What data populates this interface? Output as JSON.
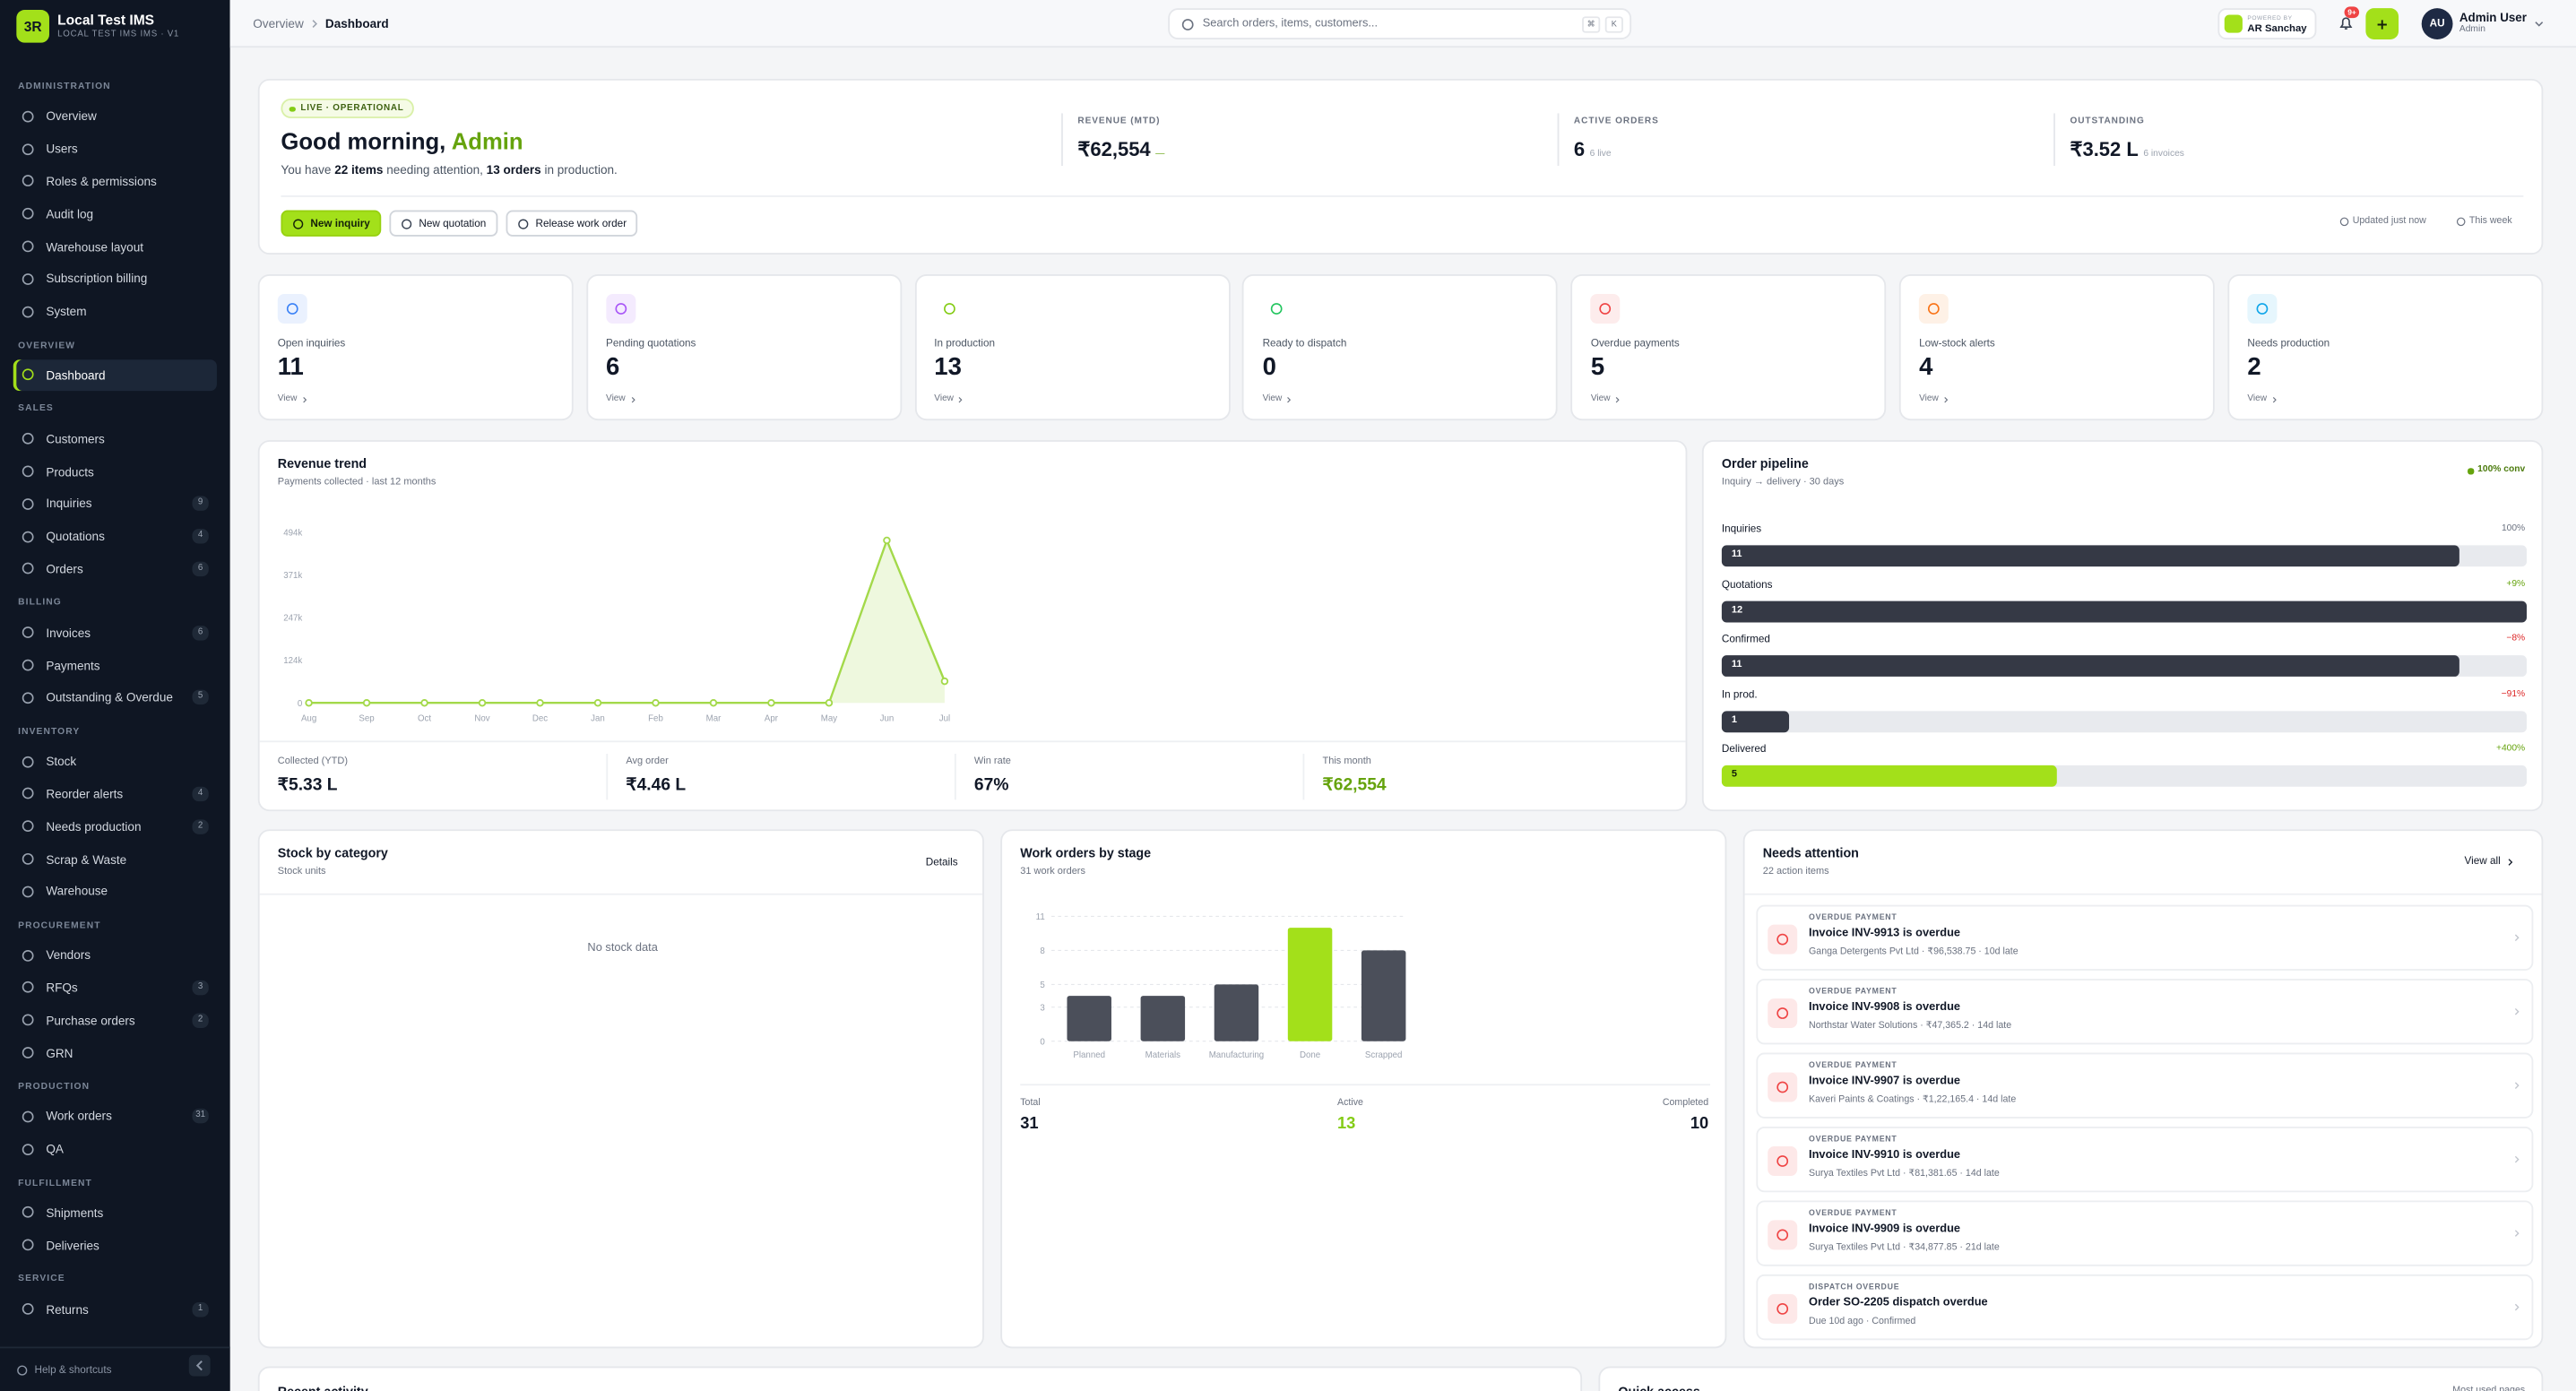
{
  "sidebar": {
    "logo_text": "3R",
    "brand": "Local Test IMS",
    "subtitle": "LOCAL TEST IMS IMS · V1",
    "sections": [
      {
        "title": "ADMINISTRATION",
        "items": [
          {
            "label": "Overview"
          },
          {
            "label": "Users"
          },
          {
            "label": "Roles & permissions"
          },
          {
            "label": "Audit log"
          },
          {
            "label": "Warehouse layout"
          },
          {
            "label": "Subscription billing"
          },
          {
            "label": "System"
          }
        ]
      },
      {
        "title": "OVERVIEW",
        "items": [
          {
            "label": "Dashboard",
            "active": true
          }
        ]
      },
      {
        "title": "SALES",
        "items": [
          {
            "label": "Customers"
          },
          {
            "label": "Products"
          },
          {
            "label": "Inquiries",
            "badge": 9
          },
          {
            "label": "Quotations",
            "badge": 4
          },
          {
            "label": "Orders",
            "badge": 6
          }
        ]
      },
      {
        "title": "BILLING",
        "items": [
          {
            "label": "Invoices",
            "badge": 6
          },
          {
            "label": "Payments"
          },
          {
            "label": "Outstanding & Overdue",
            "badge": 5
          }
        ]
      },
      {
        "title": "INVENTORY",
        "items": [
          {
            "label": "Stock"
          },
          {
            "label": "Reorder alerts",
            "badge": 4
          },
          {
            "label": "Needs production",
            "badge": 2
          },
          {
            "label": "Scrap & Waste"
          },
          {
            "label": "Warehouse"
          }
        ]
      },
      {
        "title": "PROCUREMENT",
        "items": [
          {
            "label": "Vendors"
          },
          {
            "label": "RFQs",
            "badge": 3
          },
          {
            "label": "Purchase orders",
            "badge": 2
          },
          {
            "label": "GRN"
          }
        ]
      },
      {
        "title": "PRODUCTION",
        "items": [
          {
            "label": "Work orders",
            "badge": 31
          },
          {
            "label": "QA"
          }
        ]
      },
      {
        "title": "FULFILLMENT",
        "items": [
          {
            "label": "Shipments"
          },
          {
            "label": "Deliveries"
          }
        ]
      },
      {
        "title": "SERVICE",
        "items": [
          {
            "label": "Returns",
            "badge": 1
          }
        ]
      }
    ],
    "help": "Help & shortcuts"
  },
  "topbar": {
    "breadcrumb": [
      "Overview",
      "Dashboard"
    ],
    "search_placeholder": "Search orders, items, customers...",
    "shortcut": [
      "⌘",
      "K"
    ],
    "powered_label": "POWERED BY",
    "powered_name": "AR Sanchay",
    "notifications": "9+",
    "user": {
      "initials": "AU",
      "name": "Admin User",
      "role": "Admin"
    }
  },
  "hero": {
    "status": "LIVE · OPERATIONAL",
    "greeting": "Good morning,",
    "name": "Admin",
    "summary": [
      "You have ",
      "22 items",
      " needing attention, ",
      "13 orders",
      " in production."
    ],
    "kpis": [
      {
        "label": "REVENUE (MTD)",
        "value": "₹62,554",
        "note": "—",
        "note_color": "#65a30d"
      },
      {
        "label": "ACTIVE ORDERS",
        "value": "6",
        "note": "6 live",
        "note_color": "#9ca3af"
      },
      {
        "label": "OUTSTANDING",
        "value": "₹3.52 L",
        "note": "6 invoices",
        "note_color": "#9ca3af"
      }
    ],
    "actions": [
      "New inquiry",
      "New quotation",
      "Release work order"
    ],
    "updated": "Updated just now",
    "period": "This week"
  },
  "stat_cards": [
    {
      "label": "Open inquiries",
      "value": 11,
      "link": "View",
      "color": "#3b82f6",
      "bg": "#eaf1fe"
    },
    {
      "label": "Pending quotations",
      "value": 6,
      "link": "View",
      "color": "#a855f7",
      "bg": "#f4ebfe"
    },
    {
      "label": "In production",
      "value": 13,
      "link": "View",
      "color": "#84cc16",
      "bg": "#ffffff"
    },
    {
      "label": "Ready to dispatch",
      "value": 0,
      "link": "View",
      "color": "#22c55e",
      "bg": "#ffffff"
    },
    {
      "label": "Overdue payments",
      "value": 5,
      "link": "View",
      "color": "#ef4444",
      "bg": "#fdecec"
    },
    {
      "label": "Low-stock alerts",
      "value": 4,
      "link": "View",
      "color": "#f97316",
      "bg": "#fef1e6"
    },
    {
      "label": "Needs production",
      "value": 2,
      "link": "View",
      "color": "#0ea5e9",
      "bg": "#e6f6fd"
    }
  ],
  "revenue_trend": {
    "type": "line",
    "title": "Revenue trend",
    "subtitle": "Payments collected · last 12 months",
    "categories": [
      "Aug",
      "Sep",
      "Oct",
      "Nov",
      "Dec",
      "Jan",
      "Feb",
      "Mar",
      "Apr",
      "May",
      "Jun",
      "Jul"
    ],
    "values": [
      0,
      0,
      0,
      0,
      0,
      0,
      0,
      0,
      0,
      0,
      470000,
      62554
    ],
    "color": "#a3d94a",
    "ylim": [
      0,
      494000
    ],
    "yticks": [
      0,
      {
        "value": 124000,
        "label": "124k"
      },
      {
        "value": 247000,
        "label": "247k"
      },
      {
        "value": 371000,
        "label": "371k"
      },
      {
        "value": 494000,
        "label": "494k"
      }
    ],
    "grid": false,
    "stats": [
      {
        "label": "Collected (YTD)",
        "value": "₹5.33 L"
      },
      {
        "label": "Avg order",
        "value": "₹4.46 L"
      },
      {
        "label": "Win rate",
        "value": "67%"
      },
      {
        "label": "This month",
        "value": "₹62,554",
        "color": "#65a30d"
      }
    ]
  },
  "order_pipeline": {
    "type": "bar",
    "title": "Order pipeline",
    "subtitle": "Inquiry → delivery · 30 days",
    "badge": "100% conv",
    "xlim": [
      0,
      12
    ],
    "stages": [
      {
        "name": "Inquiries",
        "value": 11,
        "change": "100%",
        "change_color": "#6b7280",
        "color": "#353945"
      },
      {
        "name": "Quotations",
        "value": 12,
        "change": "+9%",
        "change_color": "#65a30d",
        "color": "#353945"
      },
      {
        "name": "Confirmed",
        "value": 11,
        "change": "−8%",
        "change_color": "#dc2626",
        "color": "#353945"
      },
      {
        "name": "In prod.",
        "value": 1,
        "change": "−91%",
        "change_color": "#dc2626",
        "color": "#353945"
      },
      {
        "name": "Delivered",
        "value": 5,
        "change": "+400%",
        "change_color": "#65a30d",
        "color": "#a3e01a"
      }
    ]
  },
  "stock_by_category": {
    "title": "Stock by category",
    "subtitle": "Stock units",
    "action": "Details",
    "empty": "No stock data"
  },
  "work_orders": {
    "type": "bar",
    "title": "Work orders by stage",
    "subtitle": "31 work orders",
    "categories": [
      "Planned",
      "Materials",
      "Manufacturing",
      "Done",
      "Scrapped"
    ],
    "values": [
      4,
      4,
      5,
      10,
      8
    ],
    "colors": [
      "#4b4f5a",
      "#4b4f5a",
      "#4b4f5a",
      "#a3e01a",
      "#4b4f5a"
    ],
    "ylim": [
      0,
      11
    ],
    "yticks": [
      0,
      3,
      5,
      8,
      11
    ],
    "grid": true,
    "summary": [
      {
        "label": "Total",
        "value": 31
      },
      {
        "label": "Active",
        "value": 13,
        "color": "#84cc16"
      },
      {
        "label": "Completed",
        "value": 10
      }
    ]
  },
  "attention": {
    "title": "Needs attention",
    "subtitle": "22 action items",
    "action": "View all",
    "items": [
      {
        "kind": "OVERDUE PAYMENT",
        "title": "Invoice INV-9913 is overdue",
        "detail": "Ganga Detergents Pvt Ltd · ₹96,538.75 · 10d late"
      },
      {
        "kind": "OVERDUE PAYMENT",
        "title": "Invoice INV-9908 is overdue",
        "detail": "Northstar Water Solutions · ₹47,365.2 · 14d late"
      },
      {
        "kind": "OVERDUE PAYMENT",
        "title": "Invoice INV-9907 is overdue",
        "detail": "Kaveri Paints & Coatings · ₹1,22,165.4 · 14d late"
      },
      {
        "kind": "OVERDUE PAYMENT",
        "title": "Invoice INV-9910 is overdue",
        "detail": "Surya Textiles Pvt Ltd · ₹81,381.65 · 14d late"
      },
      {
        "kind": "OVERDUE PAYMENT",
        "title": "Invoice INV-9909 is overdue",
        "detail": "Surya Textiles Pvt Ltd · ₹34,877.85 · 21d late"
      },
      {
        "kind": "DISPATCH OVERDUE",
        "title": "Order SO-2205 dispatch overdue",
        "detail": "Due 10d ago · Confirmed"
      }
    ]
  },
  "recent_activity": {
    "title": "Recent activity"
  },
  "quick_access": {
    "title": "Quick access",
    "hint": "Most used pages"
  }
}
